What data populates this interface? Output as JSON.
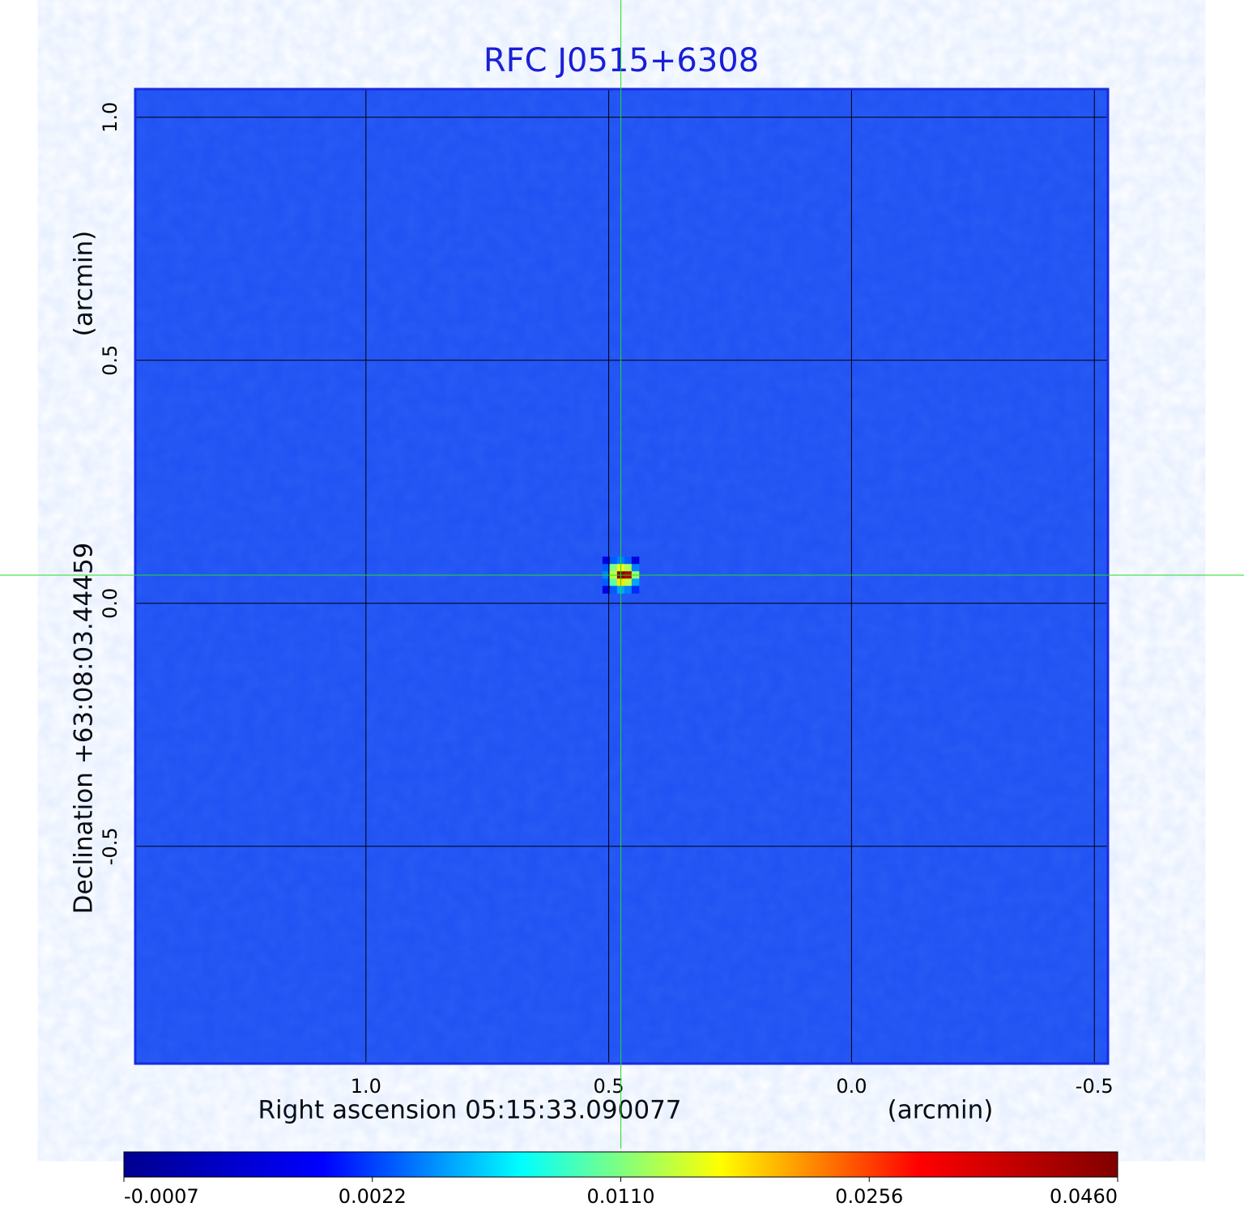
{
  "chart_data": {
    "type": "image",
    "title": "RFC J0515+6308",
    "x_label": "Right ascension  05:15:33.090077",
    "x_unit_label": "(arcmin)",
    "y_label": "Declination  +63:08:03.44459",
    "y_unit_label": "(arcmin)",
    "xlim": [
      1.475,
      -0.528
    ],
    "ylim": [
      -0.947,
      1.058
    ],
    "xticks": [
      {
        "value": 1,
        "label": "1.0"
      },
      0.5,
      {
        "value": 0,
        "label": "0.0"
      },
      -0.5
    ],
    "yticks": [
      {
        "value": 1,
        "label": "1.0"
      },
      0.5,
      {
        "value": 0,
        "label": "0.0"
      },
      -0.5
    ],
    "grid": true,
    "background_color": "#1f50f3",
    "crosshair": {
      "x": 0.475,
      "y": 0.058,
      "color": "#22dd22"
    },
    "colorbar_ticks": [
      -0.0007,
      0.0022,
      {
        "value": 0.011,
        "label": "0.0110"
      },
      0.0256,
      {
        "value": 0.046,
        "label": "0.0460"
      }
    ],
    "colormap": [
      "#00008f",
      "#0000ff",
      "#00ffff",
      "#ffff00",
      "#ff0000",
      "#800000"
    ],
    "pixels": {
      "x": [
        0.505,
        0.49,
        0.475,
        0.46,
        0.445,
        0.505,
        0.49,
        0.475,
        0.46,
        0.445,
        0.505,
        0.49,
        0.475,
        0.46,
        0.445,
        0.505,
        0.49,
        0.475,
        0.46,
        0.445,
        0.505,
        0.49,
        0.475,
        0.46,
        0.445
      ],
      "y": [
        0.088,
        0.088,
        0.088,
        0.088,
        0.088,
        0.073,
        0.073,
        0.073,
        0.073,
        0.073,
        0.058,
        0.058,
        0.058,
        0.058,
        0.058,
        0.043,
        0.043,
        0.043,
        0.043,
        0.043,
        0.028,
        0.028,
        0.028,
        0.028,
        0.028
      ],
      "values": [
        0.001,
        0.003,
        0.004,
        0.003,
        0.001,
        0.003,
        0.011,
        0.016,
        0.013,
        0.004,
        0.004,
        0.014,
        0.046,
        0.04,
        0.012,
        0.003,
        0.01,
        0.018,
        0.014,
        0.005,
        0.001,
        0.003,
        0.005,
        0.004,
        0.002
      ]
    }
  }
}
